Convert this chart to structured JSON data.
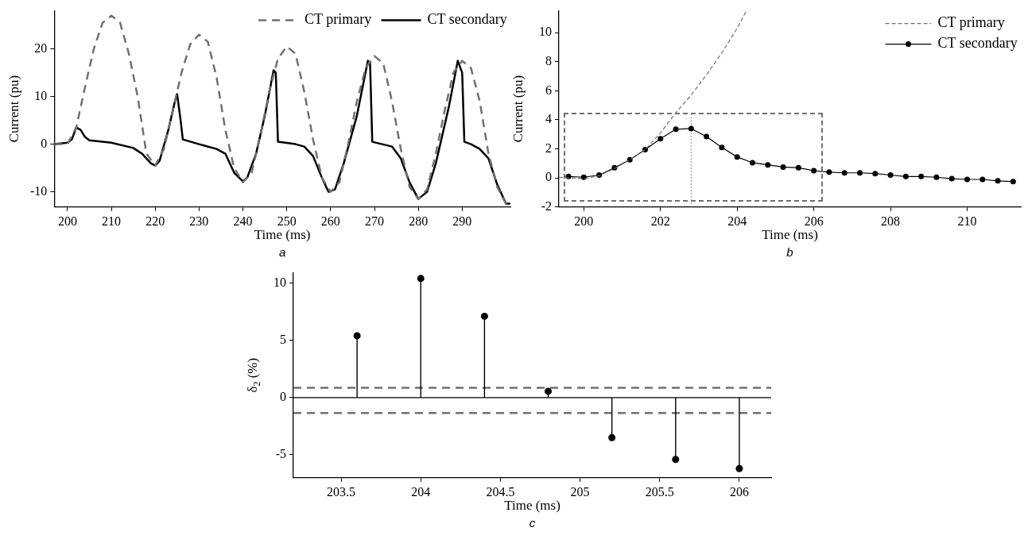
{
  "chart_data": [
    {
      "type": "line",
      "xlabel": "Time (ms)",
      "ylabel": "Current (pu)",
      "annotations": [
        "a"
      ],
      "xlim": [
        197,
        301
      ],
      "ylim": [
        -13.2,
        28
      ],
      "xticks": [
        200,
        210,
        220,
        230,
        240,
        250,
        260,
        270,
        280,
        290
      ],
      "yticks": [
        -10,
        0,
        10,
        20
      ],
      "grid": false,
      "legend": "top right",
      "series": [
        {
          "name": "CT primary",
          "color": "#707070",
          "line_style": "dashed",
          "marker": "none",
          "x": [
            197,
            200,
            202,
            204,
            206,
            208,
            210,
            212,
            214,
            216,
            218,
            220,
            222,
            224,
            226,
            228,
            230,
            232,
            234,
            236,
            238,
            240,
            242,
            244,
            246,
            248,
            250,
            252,
            254,
            256,
            258,
            260,
            262,
            264,
            266,
            268,
            270,
            272,
            274,
            276,
            278,
            280,
            282,
            284,
            286,
            288,
            290,
            292,
            294,
            296,
            298,
            300,
            301
          ],
          "values": [
            0,
            0,
            3.5,
            12,
            20,
            25.5,
            27,
            25.5,
            19,
            10,
            -2,
            -4.5,
            -1,
            7,
            15,
            21,
            23,
            21.5,
            14,
            3,
            -5,
            -8,
            -6,
            2,
            11,
            18,
            20.5,
            19,
            11,
            1,
            -7,
            -10,
            -8,
            0,
            9,
            16,
            18.5,
            17,
            9,
            -1,
            -9,
            -11.5,
            -9.5,
            -2,
            7,
            15,
            17.5,
            16,
            9,
            -2,
            -9,
            -12.5,
            -12.5
          ]
        },
        {
          "name": "CT secondary",
          "color": "#000000",
          "line_style": "solid",
          "marker": "none",
          "x": [
            197,
            200,
            201,
            202,
            203,
            204,
            205,
            210,
            215,
            217,
            219,
            220,
            221,
            223,
            224.5,
            225,
            225.8,
            226.3,
            230,
            234,
            236,
            238,
            240,
            241,
            243,
            245,
            247,
            247.5,
            248,
            252,
            254,
            256,
            258,
            259.5,
            261,
            263,
            266,
            268.5,
            269,
            269.5,
            274,
            276,
            278,
            280,
            282,
            284,
            287,
            289,
            290,
            290.5,
            292,
            294,
            296,
            298,
            300,
            301
          ],
          "values": [
            0,
            0.3,
            1,
            3.5,
            3,
            1.5,
            0.8,
            0.3,
            -0.8,
            -2,
            -4,
            -4.5,
            -3.5,
            3,
            9,
            10.5,
            5,
            1,
            0,
            -1,
            -2,
            -6,
            -7.8,
            -7,
            -2,
            6,
            15.5,
            15,
            0.5,
            0,
            -0.5,
            -2.5,
            -7,
            -10,
            -9.5,
            -4,
            6,
            17.5,
            17,
            0.5,
            -0.5,
            -3,
            -8,
            -11.5,
            -10,
            -4,
            8,
            17.5,
            15,
            0.5,
            0,
            -1,
            -3,
            -8.5,
            -12.5,
            -12.5
          ]
        }
      ]
    },
    {
      "type": "line",
      "xlabel": "Time (ms)",
      "ylabel": "Current (pu)",
      "annotations": [
        "b"
      ],
      "xlim": [
        199.35,
        211.4
      ],
      "ylim": [
        -2,
        11.5
      ],
      "xticks": [
        200,
        202,
        204,
        206,
        208,
        210
      ],
      "yticks": [
        -2,
        0,
        2,
        4,
        6,
        8,
        10
      ],
      "grid": false,
      "legend": "top right",
      "ref_lines": [
        {
          "axis": "x",
          "value": 202.8,
          "color": "#707070",
          "line_style": "dotted"
        }
      ],
      "series": [
        {
          "name": "CT primary",
          "color": "#707070",
          "line_style": "dashed",
          "marker": "none",
          "x": [
            199.35,
            200,
            200.4,
            200.8,
            201.2,
            201.6,
            202,
            202.4,
            202.8,
            203.2,
            203.6,
            204,
            204.24
          ],
          "values": [
            0.05,
            -0.05,
            0.15,
            0.65,
            1.25,
            1.95,
            3.1,
            4.5,
            5.7,
            7.1,
            8.6,
            10.3,
            11.5
          ]
        },
        {
          "name": "CT secondary",
          "color": "#000000",
          "line_style": "solid",
          "marker": "circle",
          "x": [
            199.6,
            200,
            200.4,
            200.8,
            201.2,
            201.6,
            202,
            202.4,
            202.8,
            203.2,
            203.6,
            204,
            204.4,
            204.8,
            205.2,
            205.6,
            206,
            206.4,
            206.8,
            207.2,
            207.6,
            208,
            208.4,
            208.8,
            209.2,
            209.6,
            210,
            210.4,
            210.8,
            211.2
          ],
          "values": [
            0.1,
            0.05,
            0.2,
            0.7,
            1.25,
            1.95,
            2.7,
            3.35,
            3.4,
            2.85,
            2.1,
            1.45,
            1.05,
            0.9,
            0.75,
            0.7,
            0.5,
            0.4,
            0.35,
            0.35,
            0.3,
            0.2,
            0.1,
            0.1,
            0.05,
            -0.05,
            -0.1,
            -0.1,
            -0.2,
            -0.25
          ]
        }
      ]
    },
    {
      "type": "lollipop",
      "xlabel": "Time (ms)",
      "ylabel": "δ$_{2}$ (%)",
      "annotations": [
        "c"
      ],
      "xlim": [
        203.2,
        206.2
      ],
      "ylim": [
        -7,
        10.9
      ],
      "xticks": [
        203.5,
        204,
        204.5,
        205,
        205.5,
        206
      ],
      "yticks": [
        -5,
        0,
        5,
        10
      ],
      "grid": false,
      "marker": "circle",
      "color": "#000000",
      "ref_lines": [
        {
          "axis": "y",
          "value": 0,
          "color": "#000000",
          "line_style": "solid"
        },
        {
          "axis": "y",
          "value": 0.85,
          "color": "#707070",
          "line_style": "dashed"
        },
        {
          "axis": "y",
          "value": -1.35,
          "color": "#707070",
          "line_style": "dashed"
        }
      ],
      "x": [
        203.6,
        204,
        204.4,
        204.8,
        205.2,
        205.6,
        206
      ],
      "values": [
        5.4,
        10.4,
        7.1,
        0.55,
        -3.5,
        -5.4,
        -6.2
      ]
    }
  ]
}
